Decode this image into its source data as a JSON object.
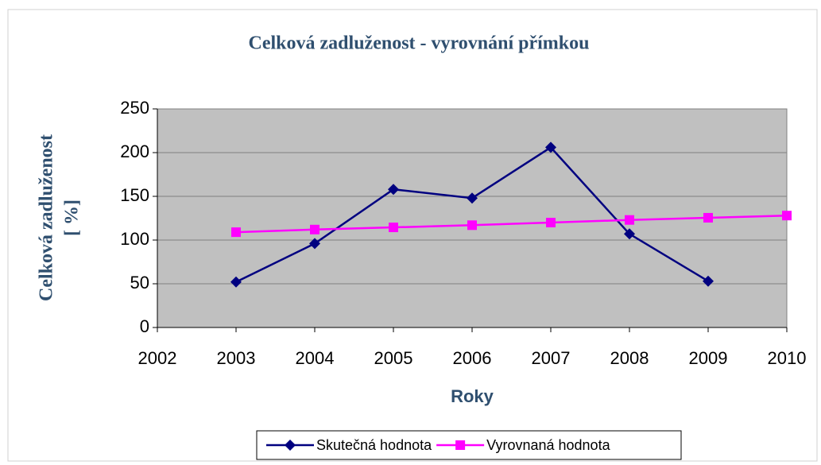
{
  "chart_data": {
    "type": "line",
    "title": "Celková zadluženost - vyrovnání přímkou",
    "xlabel": "Roky",
    "ylabel": [
      "Celková zadluženost",
      "[ %]"
    ],
    "x": [
      2003,
      2004,
      2005,
      2006,
      2007,
      2008,
      2009,
      2010
    ],
    "series": [
      {
        "name": "Skutečná hodnota",
        "color": "#000080",
        "marker": "diamond",
        "values": [
          52,
          96,
          158,
          148,
          206,
          107,
          53,
          null
        ]
      },
      {
        "name": "Vyrovnaná hodnota",
        "color": "#ff00ff",
        "marker": "square",
        "values": [
          109,
          112,
          114.5,
          117,
          120,
          123,
          125.5,
          128
        ]
      }
    ],
    "xlim": [
      2002,
      2010
    ],
    "xticks": [
      2002,
      2003,
      2004,
      2005,
      2006,
      2007,
      2008,
      2009,
      2010
    ],
    "ylim": [
      0,
      250
    ],
    "yticks": [
      0,
      50,
      100,
      150,
      200,
      250
    ],
    "grid": true,
    "legend": "bottom"
  }
}
